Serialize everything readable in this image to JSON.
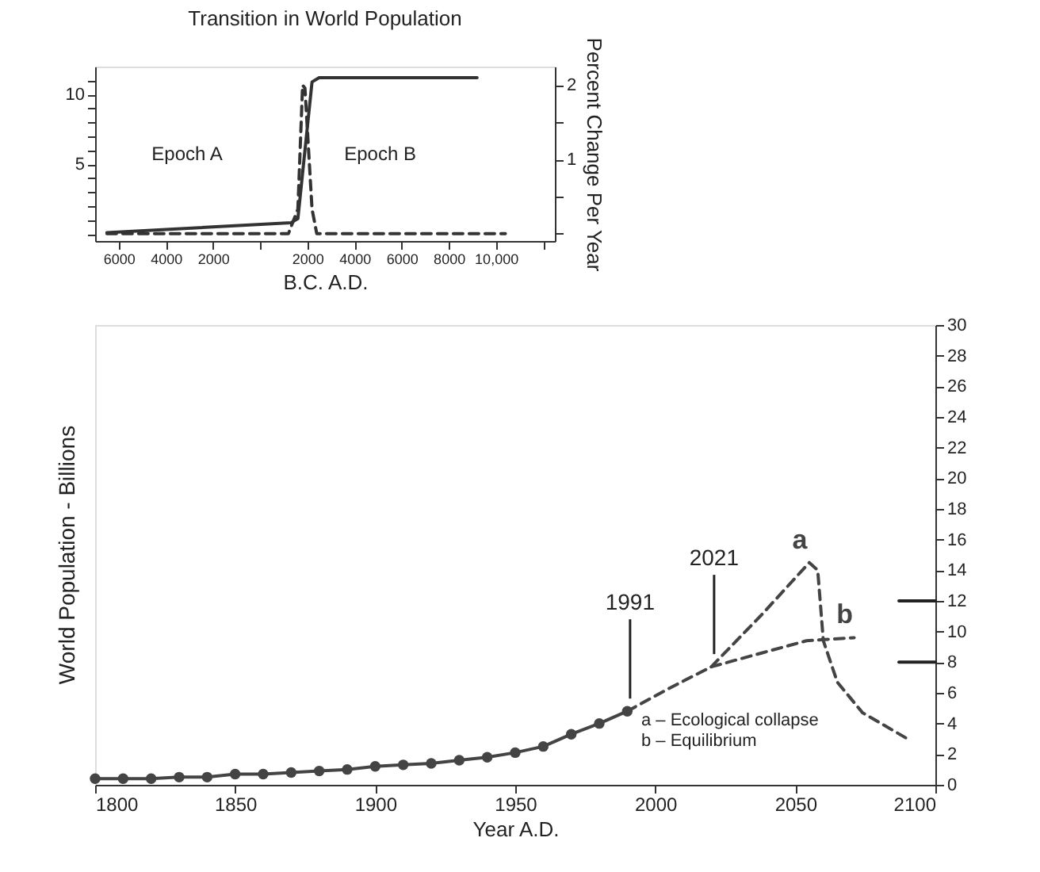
{
  "chart_data": [
    {
      "type": "line",
      "title": "Transition in World Population",
      "xlabel": "B.C.  A.D.",
      "y2label": "Percent Change Per Year",
      "xlim": [
        -7000,
        12500
      ],
      "ylim": [
        -0.5,
        12
      ],
      "y2lim": [
        -0.1,
        2.25
      ],
      "xticks": [
        {
          "value": -6000,
          "label": "6000"
        },
        {
          "value": -4000,
          "label": "4000"
        },
        {
          "value": -2000,
          "label": "2000"
        },
        {
          "value": 0,
          "label": null
        },
        2000,
        4000,
        6000,
        8000,
        {
          "value": 10000,
          "label": "10,000"
        },
        {
          "value": 12000,
          "label": null
        }
      ],
      "yticks": [
        {
          "value": 0,
          "label": null
        },
        {
          "value": 1,
          "label": null
        },
        {
          "value": 2,
          "label": null
        },
        {
          "value": 3,
          "label": null
        },
        {
          "value": 4,
          "label": null
        },
        5,
        {
          "value": 6,
          "label": null
        },
        {
          "value": 7,
          "label": null
        },
        {
          "value": 8,
          "label": null
        },
        {
          "value": 9,
          "label": null
        },
        10,
        {
          "value": 11,
          "label": null
        }
      ],
      "y2ticks": [
        {
          "value": 0,
          "label": null
        },
        {
          "value": 0.5,
          "label": null
        },
        1,
        {
          "value": 1.5,
          "label": null
        },
        2
      ],
      "grid": false,
      "annotations": [
        "Epoch A",
        "Epoch B"
      ],
      "series": [
        {
          "color": "#333333",
          "axis": "y",
          "line_style": "solid",
          "x": [
            -6500,
            1300,
            1600,
            2200,
            2500,
            9200
          ],
          "values": [
            0.1,
            0.8,
            1.1,
            10.9,
            11.2,
            11.2
          ]
        },
        {
          "color": "#333333",
          "axis": "y2",
          "line_style": "dashed",
          "x": [
            -6500,
            1200,
            1600,
            1800,
            1900,
            2200,
            2400,
            10400
          ],
          "values": [
            0.0,
            0.0,
            0.33,
            2.0,
            1.96,
            0.33,
            0.0,
            0.0
          ]
        }
      ]
    },
    {
      "type": "line",
      "xlabel": "Year A.D.",
      "ylabel": "World Population - Billions",
      "xlim": [
        1800,
        2100
      ],
      "ylim": [
        0,
        30
      ],
      "xticks": [
        1800,
        1850,
        1900,
        1950,
        2000,
        2050,
        2100
      ],
      "yticks": [
        0,
        2,
        4,
        6,
        8,
        10,
        12,
        14,
        16,
        18,
        20,
        22,
        24,
        26,
        28,
        30
      ],
      "grid": false,
      "annotations": [
        {
          "text": "1991",
          "x": 1991,
          "y": 4.8
        },
        {
          "text": "2021",
          "x": 2021,
          "y": 7.7
        },
        "a – Ecological collapse",
        "b – Equilibrium"
      ],
      "series": [
        {
          "color": "#444444",
          "marker": "circle",
          "line_style": "solid",
          "x": [
            1800,
            1810,
            1820,
            1830,
            1840,
            1850,
            1860,
            1870,
            1880,
            1890,
            1900,
            1910,
            1920,
            1930,
            1940,
            1950,
            1960,
            1970,
            1980,
            1990
          ],
          "values": [
            0.4,
            0.4,
            0.4,
            0.5,
            0.5,
            0.7,
            0.7,
            0.8,
            0.9,
            1.0,
            1.2,
            1.3,
            1.4,
            1.6,
            1.8,
            2.1,
            2.5,
            3.3,
            4.0,
            4.8
          ]
        },
        {
          "name": "a",
          "color": "#444444",
          "line_style": "dashed",
          "x": [
            1990,
            2005,
            2020,
            2038,
            2055,
            2058,
            2060,
            2065,
            2074,
            2091
          ],
          "values": [
            4.8,
            6.3,
            7.7,
            11.1,
            14.5,
            14.0,
            9.4,
            6.7,
            4.7,
            2.9
          ]
        },
        {
          "name": "b",
          "color": "#444444",
          "line_style": "dashed",
          "x": [
            2020,
            2038,
            2054,
            2071
          ],
          "values": [
            7.7,
            8.6,
            9.4,
            9.6
          ]
        },
        {
          "color": "#222222",
          "line_style": "solid",
          "x": [
            2087,
            2100
          ],
          "values": [
            12,
            12
          ]
        },
        {
          "color": "#222222",
          "line_style": "solid",
          "x": [
            2087,
            2100
          ],
          "values": [
            8,
            8
          ]
        }
      ]
    }
  ]
}
